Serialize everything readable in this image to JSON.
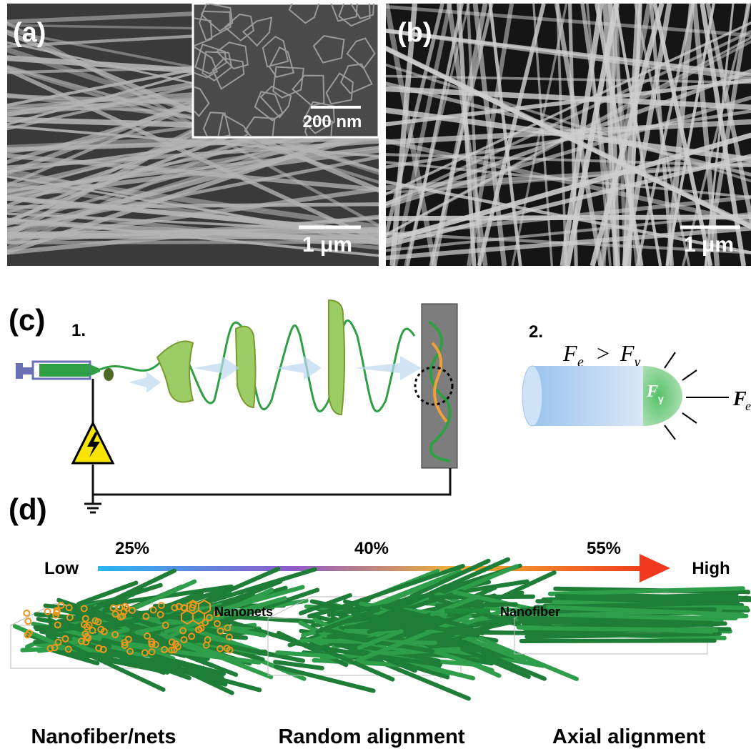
{
  "panels": {
    "a": {
      "label": "(a)",
      "inset_scale": "200 nm",
      "scale": "1 μm"
    },
    "b": {
      "label": "(b)",
      "scale": "1 μm"
    },
    "c": {
      "label": "(c)",
      "step1": "1.",
      "step2": "2.",
      "formula": {
        "lhs": "F",
        "lhs_sub": "e",
        "op": ">",
        "rhs": "F",
        "rhs_sub": "γ"
      },
      "droplet_force": {
        "symbol": "F",
        "sub": "γ"
      },
      "outer_force": {
        "symbol": "F",
        "sub": "e"
      }
    },
    "d": {
      "label": "(d)",
      "low": "Low",
      "high": "High",
      "levels": [
        "25%",
        "40%",
        "55%"
      ],
      "legend": [
        "Nanonets",
        "Nanofiber"
      ],
      "captions": [
        "Nanofiber/nets",
        "Random alignment",
        "Axial alignment"
      ]
    }
  }
}
